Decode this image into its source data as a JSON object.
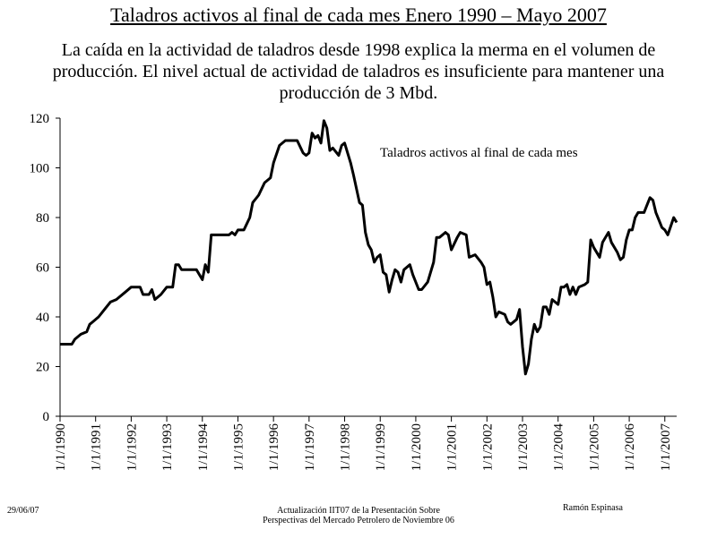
{
  "chart_data": {
    "type": "line",
    "title": "Taladros activos al final de cada mes Enero 1990 – Mayo 2007",
    "subtitle": "La caída en la actividad de taladros desde 1998 explica la merma en el  volumen de producción. El nivel actual de actividad de taladros es insuficiente para mantener una producción de 3 Mbd.",
    "x": [
      "1990-01",
      "1990-05",
      "1990-06",
      "1990-08",
      "1990-10",
      "1990-11",
      "1990-12",
      "1991-02",
      "1991-04",
      "1991-06",
      "1991-08",
      "1991-11",
      "1992-01",
      "1992-04",
      "1992-05",
      "1992-07",
      "1992-08",
      "1992-09",
      "1992-11",
      "1993-01",
      "1993-03",
      "1993-04",
      "1993-05",
      "1993-06",
      "1993-11",
      "1994-01",
      "1994-02",
      "1994-03",
      "1994-04",
      "1994-10",
      "1994-11",
      "1994-12",
      "1995-01",
      "1995-03",
      "1995-05",
      "1995-06",
      "1995-08",
      "1995-10",
      "1995-12",
      "1996-01",
      "1996-03",
      "1996-05",
      "1996-09",
      "1996-11",
      "1996-12",
      "1997-01",
      "1997-02",
      "1997-03",
      "1997-04",
      "1997-05",
      "1997-06",
      "1997-07",
      "1997-08",
      "1997-09",
      "1997-11",
      "1997-12",
      "1998-01",
      "1998-03",
      "1998-04",
      "1998-06",
      "1998-07",
      "1998-08",
      "1998-09",
      "1998-10",
      "1998-11",
      "1998-12",
      "1999-01",
      "1999-02",
      "1999-03",
      "1999-04",
      "1999-05",
      "1999-06",
      "1999-07",
      "1999-08",
      "1999-09",
      "1999-11",
      "1999-12",
      "2000-02",
      "2000-03",
      "2000-05",
      "2000-07",
      "2000-08",
      "2000-09",
      "2000-11",
      "2000-12",
      "2001-01",
      "2001-03",
      "2001-04",
      "2001-06",
      "2001-07",
      "2001-09",
      "2001-11",
      "2001-12",
      "2002-01",
      "2002-02",
      "2002-03",
      "2002-04",
      "2002-05",
      "2002-07",
      "2002-08",
      "2002-09",
      "2002-11",
      "2002-12",
      "2003-01",
      "2003-02",
      "2003-03",
      "2003-04",
      "2003-05",
      "2003-06",
      "2003-07",
      "2003-08",
      "2003-09",
      "2003-10",
      "2003-11",
      "2004-01",
      "2004-02",
      "2004-03",
      "2004-04",
      "2004-05",
      "2004-06",
      "2004-07",
      "2004-08",
      "2004-10",
      "2004-11",
      "2004-12",
      "2005-01",
      "2005-03",
      "2005-04",
      "2005-06",
      "2005-07",
      "2005-09",
      "2005-10",
      "2005-11",
      "2005-12",
      "2006-01",
      "2006-02",
      "2006-03",
      "2006-04",
      "2006-06",
      "2006-07",
      "2006-08",
      "2006-09",
      "2006-10",
      "2006-11",
      "2006-12",
      "2007-01",
      "2007-02",
      "2007-04",
      "2007-05"
    ],
    "series": [
      {
        "name": "Taladros activos al final de cada mes",
        "color": "#000000",
        "values": [
          29,
          29,
          31,
          33,
          34,
          37,
          38,
          40,
          43,
          46,
          47,
          50,
          52,
          52,
          49,
          49,
          51,
          47,
          49,
          52,
          52,
          61,
          61,
          59,
          59,
          55,
          61,
          58,
          73,
          73,
          74,
          73,
          75,
          75,
          80,
          86,
          89,
          94,
          96,
          102,
          109,
          111,
          111,
          106,
          105,
          106,
          114,
          112,
          113,
          110,
          119,
          116,
          107,
          108,
          105,
          109,
          110,
          102,
          97,
          86,
          85,
          74,
          69,
          67,
          62,
          64,
          65,
          58,
          57,
          50,
          55,
          59,
          58,
          54,
          59,
          61,
          57,
          51,
          51,
          54,
          62,
          72,
          72,
          74,
          73,
          67,
          72,
          74,
          73,
          64,
          65,
          62,
          60,
          53,
          54,
          48,
          40,
          42,
          41,
          38,
          37,
          39,
          43,
          28,
          17,
          21,
          31,
          37,
          34,
          36,
          44,
          44,
          41,
          47,
          45,
          52,
          52,
          53,
          49,
          52,
          49,
          52,
          53,
          54,
          71,
          68,
          64,
          70,
          74,
          70,
          66,
          63,
          64,
          71,
          75,
          75,
          80,
          82,
          82,
          85,
          88,
          87,
          82,
          79,
          76,
          75,
          73,
          80,
          78
        ]
      }
    ],
    "xlim": [
      "1990-01",
      "2007-05"
    ],
    "xticks": [
      {
        "value": "1990-01",
        "label": "1/1/1990"
      },
      {
        "value": "1991-01",
        "label": "1/1/1991"
      },
      {
        "value": "1992-01",
        "label": "1/1/1992"
      },
      {
        "value": "1993-01",
        "label": "1/1/1993"
      },
      {
        "value": "1994-01",
        "label": "1/1/1994"
      },
      {
        "value": "1995-01",
        "label": "1/1/1995"
      },
      {
        "value": "1996-01",
        "label": "1/1/1996"
      },
      {
        "value": "1997-01",
        "label": "1/1/1997"
      },
      {
        "value": "1998-01",
        "label": "1/1/1998"
      },
      {
        "value": "1999-01",
        "label": "1/1/1999"
      },
      {
        "value": "2000-01",
        "label": "1/1/2000"
      },
      {
        "value": "2001-01",
        "label": "1/1/2001"
      },
      {
        "value": "2002-01",
        "label": "1/1/2002"
      },
      {
        "value": "2003-01",
        "label": "1/1/2003"
      },
      {
        "value": "2004-01",
        "label": "1/1/2004"
      },
      {
        "value": "2005-01",
        "label": "1/1/2005"
      },
      {
        "value": "2006-01",
        "label": "1/1/2006"
      },
      {
        "value": "2007-01",
        "label": "1/1/2007"
      }
    ],
    "ylim": [
      0,
      120
    ],
    "yticks": [
      0,
      20,
      40,
      60,
      80,
      100,
      120
    ],
    "grid": false
  },
  "footer": {
    "date": "29/06/07",
    "center": [
      "Actualización IIT07 de la Presentación Sobre",
      "Perspectivas del Mercado Petrolero de Noviembre 06"
    ],
    "author": "Ramón Espinasa"
  }
}
